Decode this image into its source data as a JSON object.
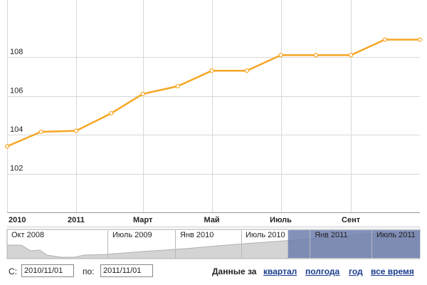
{
  "chart_data": {
    "type": "line",
    "x": [
      "2010-11-01",
      "2010-12-01",
      "2011-01-01",
      "2011-02-01",
      "2011-03-01",
      "2011-04-01",
      "2011-05-01",
      "2011-06-01",
      "2011-07-01",
      "2011-08-01",
      "2011-09-01",
      "2011-10-01",
      "2011-11-01"
    ],
    "series": [
      {
        "values": [
          103.4,
          104.15,
          104.2,
          105.1,
          106.1,
          106.5,
          107.3,
          107.3,
          108.1,
          108.1,
          108.1,
          108.9,
          108.9
        ]
      }
    ],
    "y_ticks": [
      "102",
      "104",
      "106",
      "108"
    ],
    "x_ticks": [
      {
        "x": "2010-11-01",
        "label": "2010"
      },
      {
        "x": "2011-01-01",
        "label": "2011"
      },
      {
        "x": "2011-03-01",
        "label": "Март"
      },
      {
        "x": "2011-05-01",
        "label": "Май"
      },
      {
        "x": "2011-07-01",
        "label": "Июль"
      },
      {
        "x": "2011-09-01",
        "label": "Сент"
      }
    ],
    "ylim": [
      100,
      110.5
    ],
    "grid": true,
    "line_color": "#f6a623"
  },
  "navigator": {
    "labels": [
      "Окт 2008",
      "Июль 2009",
      "Янв 2010",
      "Июль 2010",
      "Янв 2011",
      "Июль 2011"
    ],
    "selection_start": "2010-11-01",
    "selection_end": "2011-11-01",
    "selection_color": "#6e7fae"
  },
  "range_selector": {
    "from_label": "С:",
    "from_value": "2010/11/01",
    "to_label": "по:",
    "to_value": "2011/11/01",
    "period_caption": "Данные за",
    "periods": [
      "квартал",
      "полгода",
      "год",
      "все время"
    ]
  }
}
